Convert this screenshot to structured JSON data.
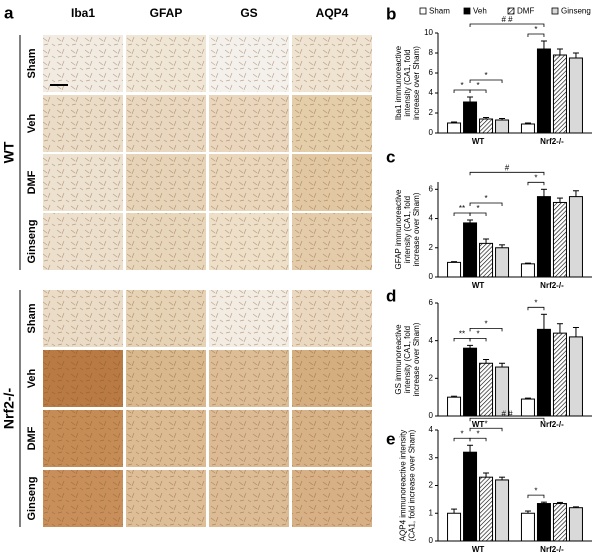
{
  "figure": {
    "panel_label": "a",
    "columns": [
      "Iba1",
      "GFAP",
      "GS",
      "AQP4"
    ],
    "blocks": [
      {
        "label": "WT",
        "rows": [
          "Sham",
          "Veh",
          "DMF",
          "Ginseng"
        ]
      },
      {
        "label": "Nrf2-/-",
        "rows": [
          "Sham",
          "Veh",
          "DMF",
          "Ginseng"
        ]
      }
    ]
  },
  "chart_data": [
    {
      "type": "bar",
      "letter": "b",
      "ylabel": [
        "Iba1 immunoreactive",
        "intensity (CA1, fold",
        "increase over Sham)"
      ],
      "categories": [
        "WT",
        "Nrf2-/-"
      ],
      "legend": true,
      "series": [
        {
          "name": "Sham",
          "color": "#ffffff",
          "values": [
            1.0,
            0.9
          ],
          "errors": [
            0.1,
            0.1
          ]
        },
        {
          "name": "Veh",
          "color": "#000000",
          "values": [
            3.1,
            8.4
          ],
          "errors": [
            0.5,
            0.8
          ]
        },
        {
          "name": "DMF",
          "color": "#ffffff",
          "hatch": true,
          "values": [
            1.4,
            7.8
          ],
          "errors": [
            0.15,
            0.6
          ]
        },
        {
          "name": "Ginseng",
          "color": "#d9d9d9",
          "values": [
            1.3,
            7.5
          ],
          "errors": [
            0.15,
            0.5
          ]
        }
      ],
      "ylim": [
        0,
        10
      ],
      "yticks": [
        0,
        2,
        4,
        6,
        8,
        10
      ],
      "significance": [
        {
          "label": "*",
          "from": [
            "WT",
            "Sham"
          ],
          "to": [
            "WT",
            "Veh"
          ]
        },
        {
          "label": "*",
          "from": [
            "WT",
            "Veh"
          ],
          "to": [
            "WT",
            "DMF"
          ]
        },
        {
          "label": "*",
          "from": [
            "WT",
            "Veh"
          ],
          "to": [
            "WT",
            "Ginseng"
          ]
        },
        {
          "label": "*",
          "from": [
            "Nrf2-/-",
            "Sham"
          ],
          "to": [
            "Nrf2-/-",
            "Veh"
          ]
        },
        {
          "label": "# #",
          "from": [
            "WT",
            "Veh"
          ],
          "to": [
            "Nrf2-/-",
            "Veh"
          ]
        }
      ]
    },
    {
      "type": "bar",
      "letter": "c",
      "ylabel": [
        "GFAP immunoreactive",
        "intensity (CA1, fold",
        "increase over Sham)"
      ],
      "categories": [
        "WT",
        "Nrf2-/-"
      ],
      "legend": false,
      "series": [
        {
          "name": "Sham",
          "color": "#ffffff",
          "values": [
            1.0,
            0.9
          ],
          "errors": [
            0.05,
            0.05
          ]
        },
        {
          "name": "Veh",
          "color": "#000000",
          "values": [
            3.7,
            5.5
          ],
          "errors": [
            0.2,
            0.5
          ]
        },
        {
          "name": "DMF",
          "color": "#ffffff",
          "hatch": true,
          "values": [
            2.3,
            5.1
          ],
          "errors": [
            0.3,
            0.3
          ]
        },
        {
          "name": "Ginseng",
          "color": "#d9d9d9",
          "values": [
            2.0,
            5.5
          ],
          "errors": [
            0.2,
            0.4
          ]
        }
      ],
      "ylim": [
        0,
        6.5
      ],
      "yticks": [
        0,
        2,
        4,
        6
      ],
      "significance": [
        {
          "label": "**",
          "from": [
            "WT",
            "Sham"
          ],
          "to": [
            "WT",
            "Veh"
          ]
        },
        {
          "label": "*",
          "from": [
            "WT",
            "Veh"
          ],
          "to": [
            "WT",
            "DMF"
          ]
        },
        {
          "label": "*",
          "from": [
            "WT",
            "Veh"
          ],
          "to": [
            "WT",
            "Ginseng"
          ]
        },
        {
          "label": "*",
          "from": [
            "Nrf2-/-",
            "Sham"
          ],
          "to": [
            "Nrf2-/-",
            "Veh"
          ]
        },
        {
          "label": "#",
          "from": [
            "WT",
            "Veh"
          ],
          "to": [
            "Nrf2-/-",
            "Veh"
          ]
        }
      ]
    },
    {
      "type": "bar",
      "letter": "d",
      "ylabel": [
        "GS immunoreactive",
        "intensity (CA1, fold",
        "increase over Sham)"
      ],
      "categories": [
        "WT",
        "Nrf2-/-"
      ],
      "legend": false,
      "series": [
        {
          "name": "Sham",
          "color": "#ffffff",
          "values": [
            1.0,
            0.9
          ],
          "errors": [
            0.05,
            0.05
          ]
        },
        {
          "name": "Veh",
          "color": "#000000",
          "values": [
            3.6,
            4.6
          ],
          "errors": [
            0.15,
            0.8
          ]
        },
        {
          "name": "DMF",
          "color": "#ffffff",
          "hatch": true,
          "values": [
            2.8,
            4.4
          ],
          "errors": [
            0.2,
            0.5
          ]
        },
        {
          "name": "Ginseng",
          "color": "#d9d9d9",
          "values": [
            2.6,
            4.2
          ],
          "errors": [
            0.2,
            0.5
          ]
        }
      ],
      "ylim": [
        0,
        6
      ],
      "yticks": [
        0,
        2,
        4,
        6
      ],
      "significance": [
        {
          "label": "**",
          "from": [
            "WT",
            "Sham"
          ],
          "to": [
            "WT",
            "Veh"
          ]
        },
        {
          "label": "*",
          "from": [
            "WT",
            "Veh"
          ],
          "to": [
            "WT",
            "DMF"
          ]
        },
        {
          "label": "*",
          "from": [
            "WT",
            "Veh"
          ],
          "to": [
            "WT",
            "Ginseng"
          ]
        },
        {
          "label": "*",
          "from": [
            "Nrf2-/-",
            "Sham"
          ],
          "to": [
            "Nrf2-/-",
            "Veh"
          ]
        }
      ]
    },
    {
      "type": "bar",
      "letter": "e",
      "ylabel": [
        "AQP4 immunoreactive intensity",
        "(CA1, fold increase over Sham)"
      ],
      "categories": [
        "WT",
        "Nrf2-/-"
      ],
      "legend": false,
      "series": [
        {
          "name": "Sham",
          "color": "#ffffff",
          "values": [
            1.0,
            1.0
          ],
          "errors": [
            0.15,
            0.08
          ]
        },
        {
          "name": "Veh",
          "color": "#000000",
          "values": [
            3.2,
            1.35
          ],
          "errors": [
            0.25,
            0.05
          ]
        },
        {
          "name": "DMF",
          "color": "#ffffff",
          "hatch": true,
          "values": [
            2.3,
            1.35
          ],
          "errors": [
            0.15,
            0.04
          ]
        },
        {
          "name": "Ginseng",
          "color": "#d9d9d9",
          "values": [
            2.2,
            1.2
          ],
          "errors": [
            0.1,
            0.03
          ]
        }
      ],
      "ylim": [
        0,
        4
      ],
      "yticks": [
        0,
        1,
        2,
        3,
        4
      ],
      "significance": [
        {
          "label": "*",
          "from": [
            "WT",
            "Sham"
          ],
          "to": [
            "WT",
            "Veh"
          ]
        },
        {
          "label": "*",
          "from": [
            "WT",
            "Veh"
          ],
          "to": [
            "WT",
            "DMF"
          ]
        },
        {
          "label": "*",
          "from": [
            "WT",
            "Veh"
          ],
          "to": [
            "WT",
            "Ginseng"
          ]
        },
        {
          "label": "*",
          "from": [
            "Nrf2-/-",
            "Sham"
          ],
          "to": [
            "Nrf2-/-",
            "Veh"
          ]
        },
        {
          "label": "# #",
          "from": [
            "WT",
            "Veh"
          ],
          "to": [
            "Nrf2-/-",
            "Veh"
          ]
        }
      ]
    }
  ]
}
